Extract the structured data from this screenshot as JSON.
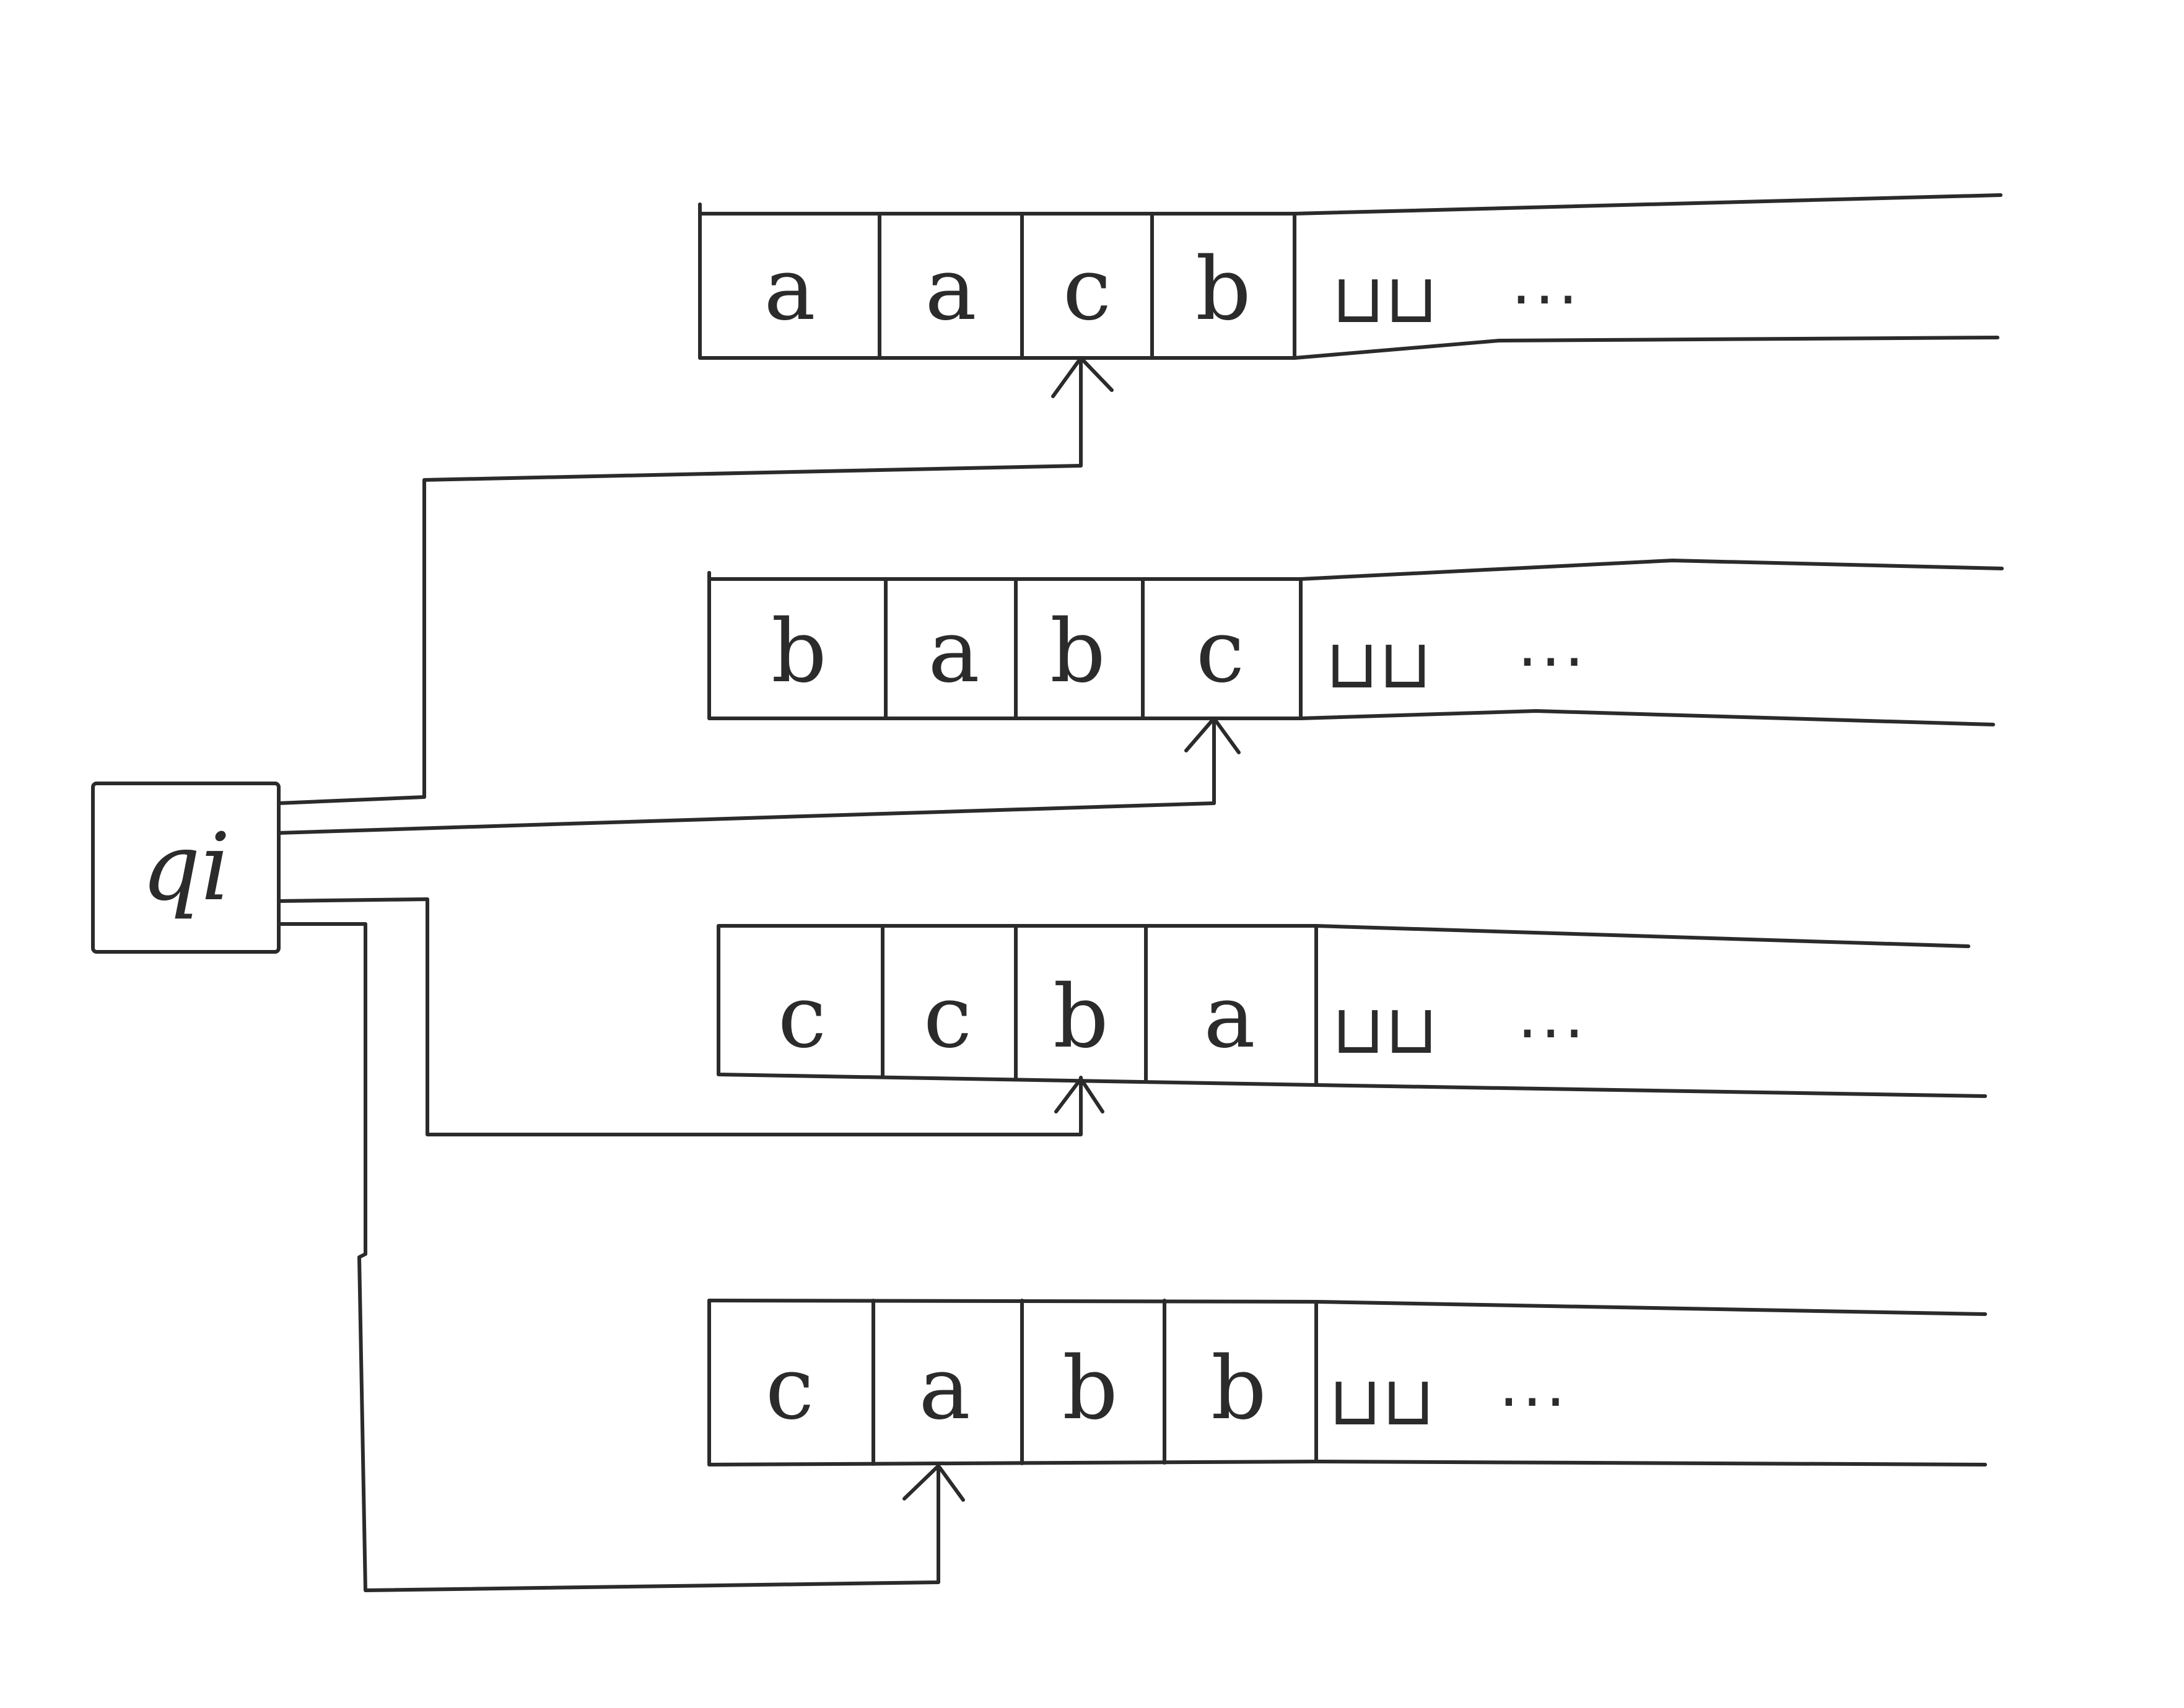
{
  "state": {
    "label": "qi"
  },
  "tapes": [
    {
      "cells": [
        "a",
        "a",
        "c",
        "b"
      ],
      "blank_symbols": "⊔⊔",
      "continuation": "...",
      "head_cell": 3
    },
    {
      "cells": [
        "b",
        "a",
        "b",
        "c"
      ],
      "blank_symbols": "⊔⊔",
      "continuation": "...",
      "head_cell": 4
    },
    {
      "cells": [
        "c",
        "c",
        "b",
        "a"
      ],
      "blank_symbols": "⊔⊔",
      "continuation": "...",
      "head_cell": 3
    },
    {
      "cells": [
        "c",
        "a",
        "b",
        "b"
      ],
      "blank_symbols": "⊔⊔",
      "continuation": "...",
      "head_cell": 2
    }
  ],
  "colors": {
    "ink": "#2b2b2b",
    "paper": "#ffffff"
  }
}
